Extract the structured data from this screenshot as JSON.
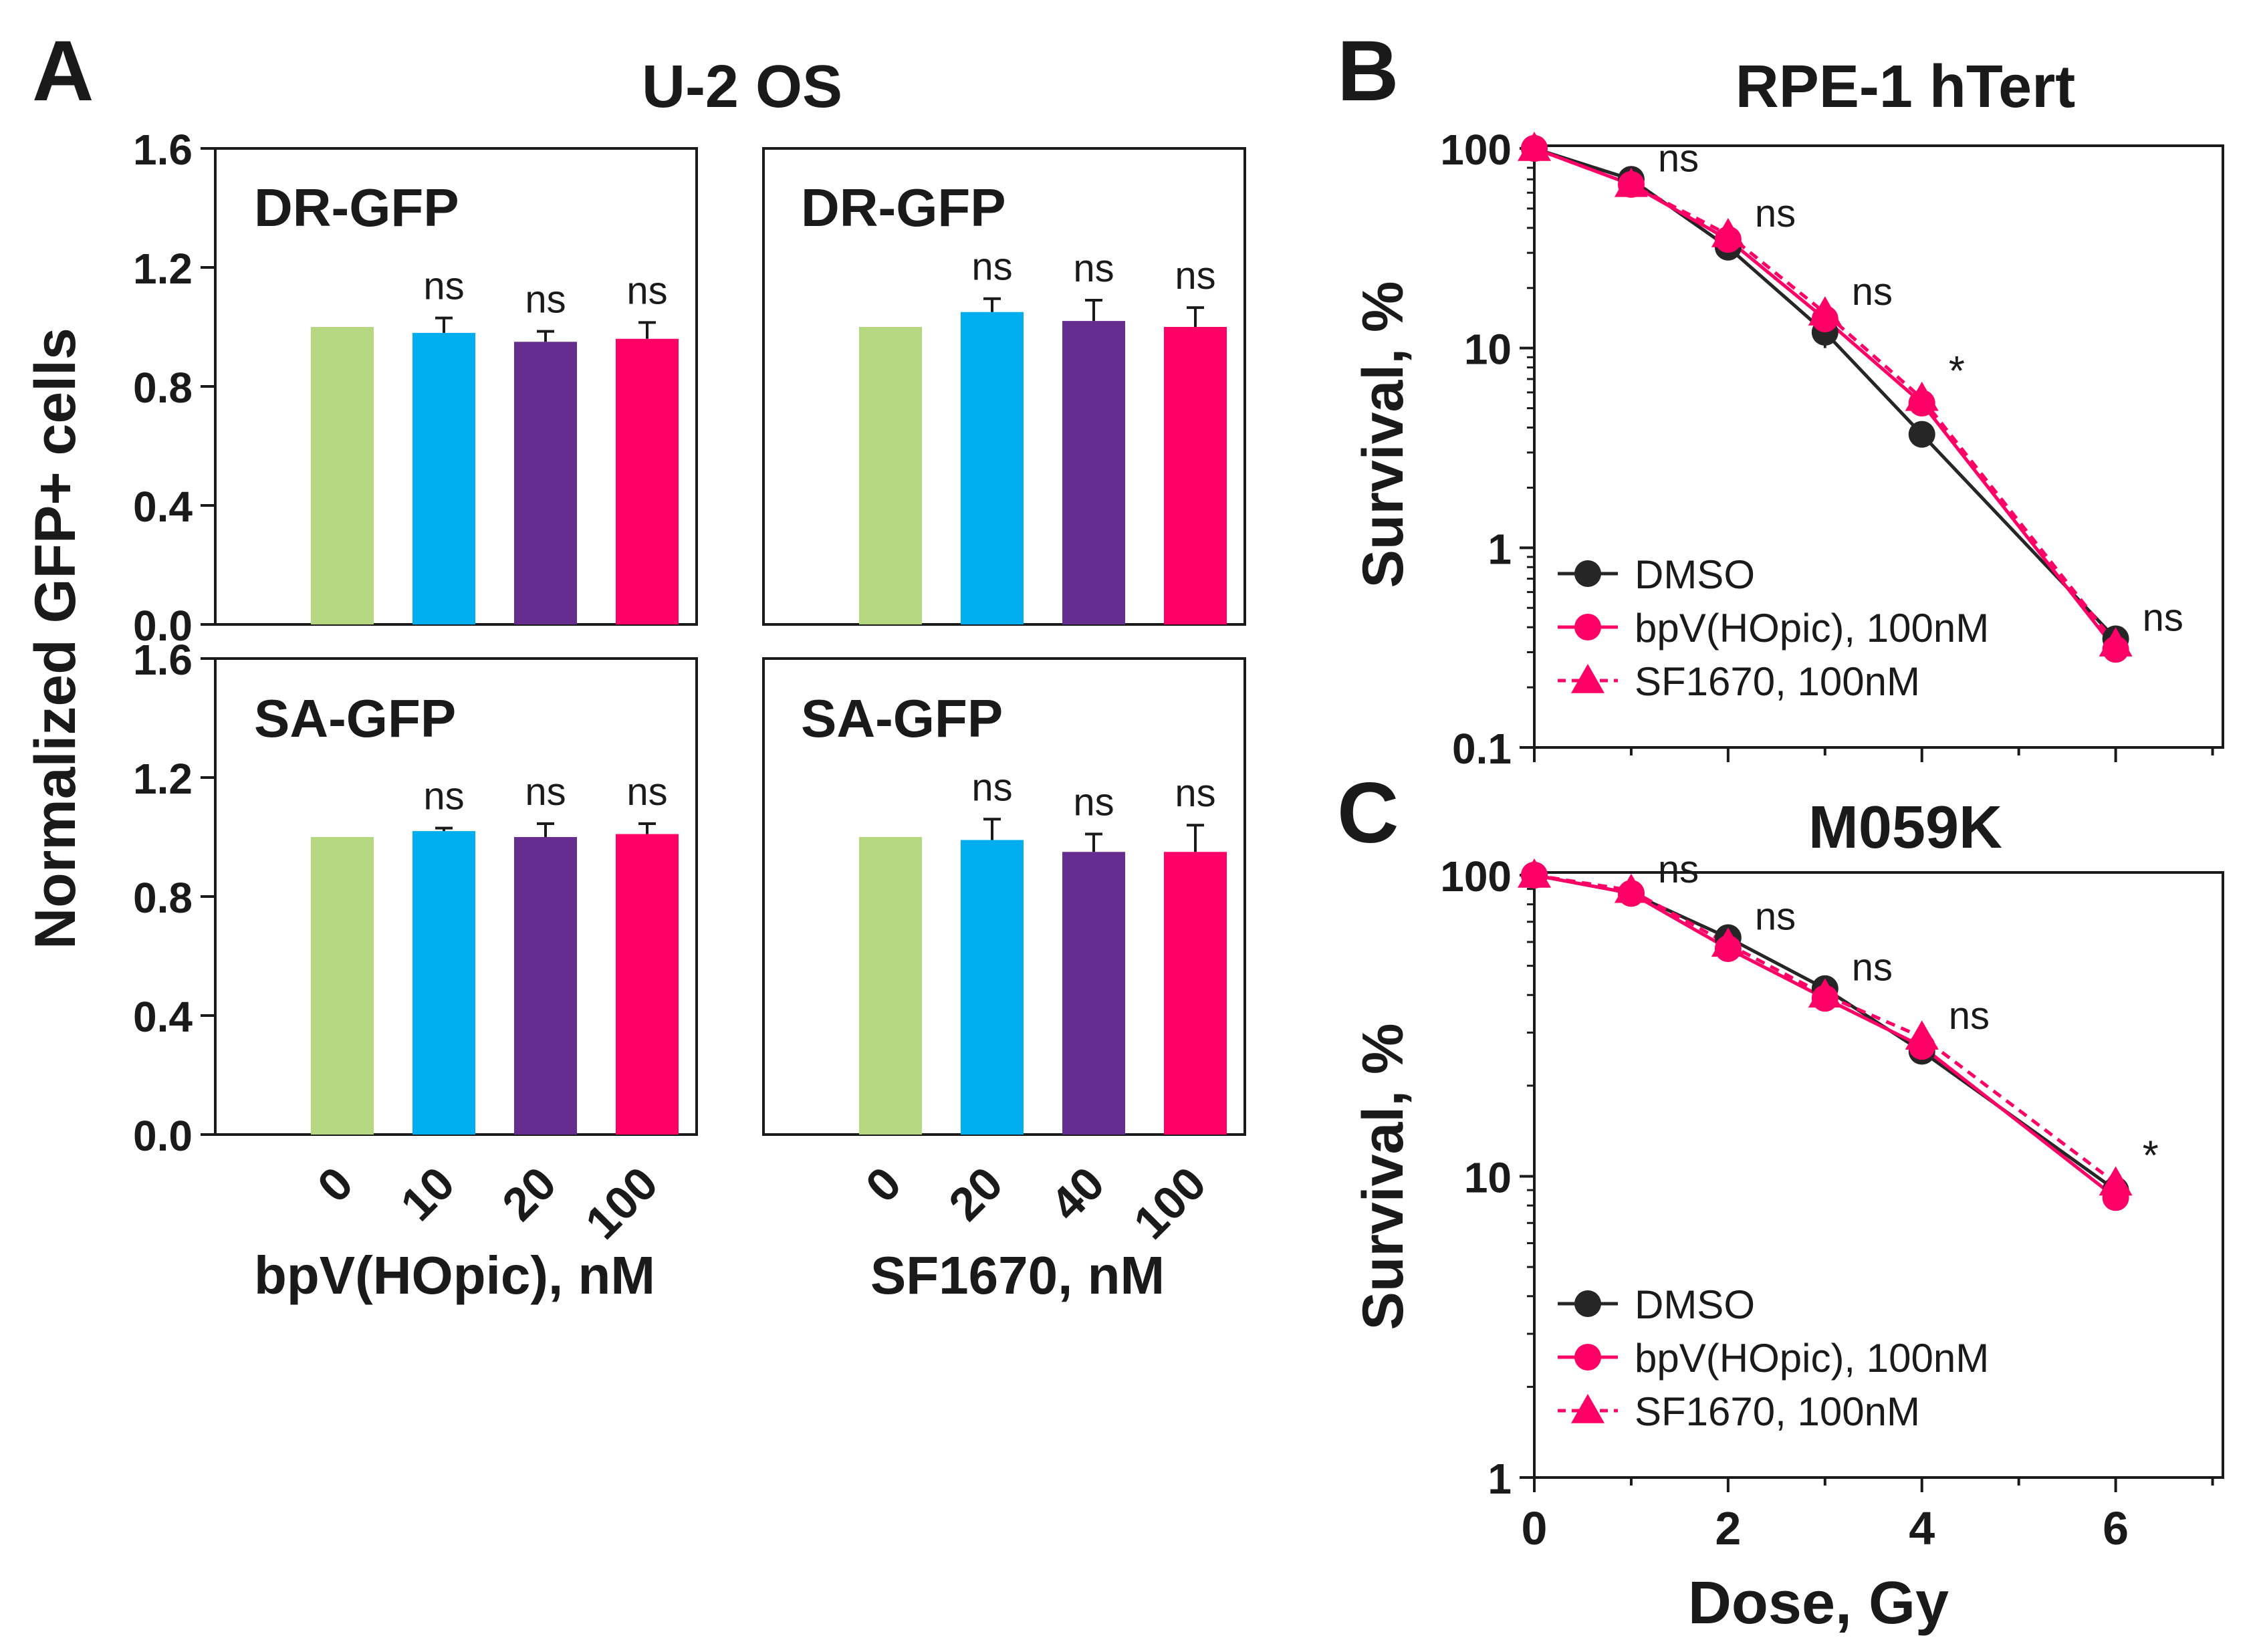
{
  "figure": {
    "panel_a_letter": "A",
    "panel_b_letter": "B",
    "panel_c_letter": "C",
    "panel_a_title": "U-2 OS"
  },
  "colors": {
    "bar": [
      "#b5d77f",
      "#00aeef",
      "#662d91",
      "#ff0066"
    ],
    "dmso": "#262626",
    "pink": "#ff0066"
  },
  "chart_data": [
    {
      "type": "bar",
      "id": "A-DR-bpV",
      "label": "DR-GFP",
      "categories": [
        "0",
        "10",
        "20",
        "100"
      ],
      "values": [
        1.0,
        0.98,
        0.95,
        0.96
      ],
      "errors": [
        0,
        0.05,
        0.035,
        0.055
      ],
      "annotations": [
        "",
        "ns",
        "ns",
        "ns"
      ],
      "ylabel": "Normalized GFP+ cells",
      "yticks": [
        "1.6",
        "1.2",
        "0.8",
        "0.4",
        "0.0"
      ],
      "ylim": [
        0,
        1.6
      ]
    },
    {
      "type": "bar",
      "id": "A-DR-SF",
      "label": "DR-GFP",
      "categories": [
        "0",
        "20",
        "40",
        "100"
      ],
      "values": [
        1.0,
        1.05,
        1.02,
        1.0
      ],
      "errors": [
        0,
        0.045,
        0.07,
        0.065
      ],
      "annotations": [
        "",
        "ns",
        "ns",
        "ns"
      ],
      "ylim": [
        0,
        1.6
      ]
    },
    {
      "type": "bar",
      "id": "A-SA-bpV",
      "label": "SA-GFP",
      "categories": [
        "0",
        "10",
        "20",
        "100"
      ],
      "values": [
        1.0,
        1.02,
        1.0,
        1.01
      ],
      "errors": [
        0,
        0.01,
        0.045,
        0.035
      ],
      "annotations": [
        "",
        "ns",
        "ns",
        "ns"
      ],
      "xlabel": "bpV(HOpic), nM",
      "yticks": [
        "1.6",
        "1.2",
        "0.8",
        "0.4",
        "0.0"
      ],
      "ylim": [
        0,
        1.6
      ]
    },
    {
      "type": "bar",
      "id": "A-SA-SF",
      "label": "SA-GFP",
      "categories": [
        "0",
        "20",
        "40",
        "100"
      ],
      "values": [
        1.0,
        0.99,
        0.95,
        0.95
      ],
      "errors": [
        0,
        0.07,
        0.06,
        0.09
      ],
      "annotations": [
        "",
        "ns",
        "ns",
        "ns"
      ],
      "xlabel": "SF1670, nM",
      "ylim": [
        0,
        1.6
      ]
    },
    {
      "type": "line",
      "id": "B",
      "title": "RPE-1 hTert",
      "ylabel": "Survival, %",
      "yscale": "log",
      "ylim": [
        0.1,
        100
      ],
      "xlim": [
        0,
        7
      ],
      "yticks": [
        "100",
        "10",
        "1",
        "0.1"
      ],
      "x": [
        0,
        1,
        2,
        3,
        4,
        6
      ],
      "series": [
        {
          "name": "DMSO",
          "marker": "circle",
          "style": "solid",
          "values": [
            100,
            70,
            32,
            12,
            3.7,
            0.35
          ],
          "errors": [
            0,
            6,
            3,
            2,
            0.25,
            0.03
          ]
        },
        {
          "name": "bpV(HOpic), 100nM",
          "marker": "circle",
          "style": "solid",
          "values": [
            100,
            66,
            35,
            14,
            5.3,
            0.31
          ],
          "errors": [
            0,
            5,
            4,
            2,
            0.5,
            0.03
          ]
        },
        {
          "name": "SF1670, 100nM",
          "marker": "triangle",
          "style": "dotted",
          "values": [
            100,
            66,
            37,
            15,
            5.6,
            0.33
          ],
          "errors": [
            0,
            5,
            4,
            2,
            0.5,
            0.03
          ]
        }
      ],
      "annotations": [
        {
          "x": 1,
          "text": "ns"
        },
        {
          "x": 2,
          "text": "ns"
        },
        {
          "x": 3,
          "text": "ns"
        },
        {
          "x": 4,
          "text": "*"
        },
        {
          "x": 6,
          "text": "ns"
        }
      ]
    },
    {
      "type": "line",
      "id": "C",
      "title": "M059K",
      "ylabel": "Survival, %",
      "xlabel": "Dose, Gy",
      "yscale": "log",
      "ylim": [
        1,
        100
      ],
      "xlim": [
        0,
        7
      ],
      "xticks": [
        "0",
        "2",
        "4",
        "6"
      ],
      "yticks": [
        "100",
        "10",
        "1"
      ],
      "x": [
        0,
        1,
        2,
        3,
        4,
        6
      ],
      "series": [
        {
          "name": "DMSO",
          "marker": "circle",
          "style": "solid",
          "values": [
            100,
            87,
            62,
            42,
            26,
            9.0
          ],
          "errors": [
            0,
            3,
            3,
            2,
            2,
            0.5
          ]
        },
        {
          "name": "bpV(HOpic), 100nM",
          "marker": "circle",
          "style": "solid",
          "values": [
            100,
            87,
            57,
            39,
            27,
            8.5
          ],
          "errors": [
            0,
            3,
            3,
            2,
            2,
            0.5
          ]
        },
        {
          "name": "SF1670, 100nM",
          "marker": "triangle",
          "style": "dotted",
          "values": [
            100,
            89,
            59,
            40,
            29,
            9.5
          ],
          "errors": [
            0,
            3,
            3,
            2,
            2,
            0.5
          ]
        }
      ],
      "annotations": [
        {
          "x": 1,
          "text": "ns"
        },
        {
          "x": 2,
          "text": "ns"
        },
        {
          "x": 3,
          "text": "ns"
        },
        {
          "x": 4,
          "text": "ns"
        },
        {
          "x": 6,
          "text": "*"
        }
      ]
    }
  ]
}
